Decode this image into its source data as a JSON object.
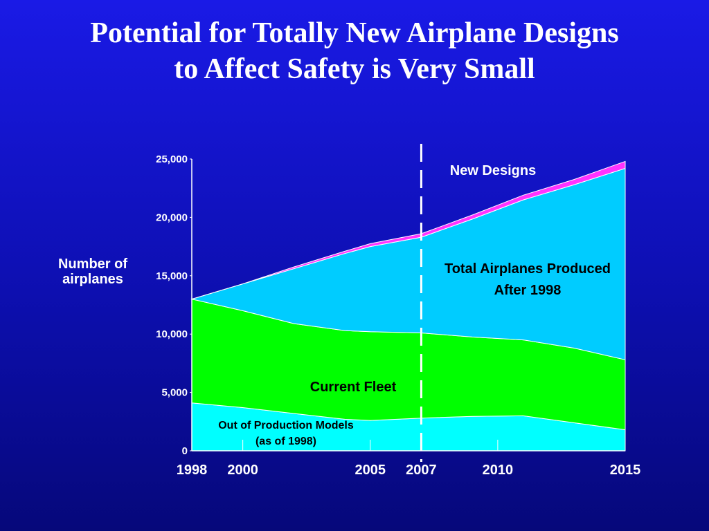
{
  "title": {
    "line1": "Potential for Totally New Airplane Designs",
    "line2": "to Affect Safety is Very Small"
  },
  "chart_data": {
    "type": "area",
    "stacked": true,
    "x": [
      1998,
      2000,
      2002,
      2004,
      2005,
      2007,
      2009,
      2011,
      2013,
      2015
    ],
    "xticks": [
      1998,
      2000,
      2005,
      2007,
      2010,
      2015
    ],
    "xtick_labels": [
      "1998",
      "2000",
      "2005",
      "2007",
      "2010",
      "2015"
    ],
    "yticks": [
      0,
      5000,
      10000,
      15000,
      20000,
      25000
    ],
    "ytick_labels": [
      "0",
      "5,000",
      "10,000",
      "15,000",
      "20,000",
      "25,000"
    ],
    "ylim": [
      0,
      25000
    ],
    "xlim": [
      1998,
      2015
    ],
    "ylabel_line1": "Number of",
    "ylabel_line2": "airplanes",
    "divider_year": 2007,
    "series": [
      {
        "name": "Out of Production Models",
        "name_line2": "(as of 1998)",
        "color": "#00ffff",
        "values": [
          4100,
          3700,
          3200,
          2700,
          2600,
          2800,
          2950,
          3000,
          2400,
          1800
        ]
      },
      {
        "name": "Current Fleet",
        "color": "#00ff00",
        "values": [
          8900,
          8300,
          7700,
          7600,
          7600,
          7300,
          6800,
          6500,
          6400,
          6000
        ]
      },
      {
        "name": "Total Airplanes Produced",
        "name_line2": "After 1998",
        "color": "#00ccff",
        "values": [
          0,
          2300,
          4700,
          6600,
          7300,
          8200,
          10100,
          12000,
          14000,
          16400
        ]
      },
      {
        "name": "New Designs",
        "color": "#ff33ff",
        "values": [
          0,
          0,
          150,
          200,
          250,
          300,
          350,
          400,
          450,
          600
        ]
      }
    ]
  }
}
